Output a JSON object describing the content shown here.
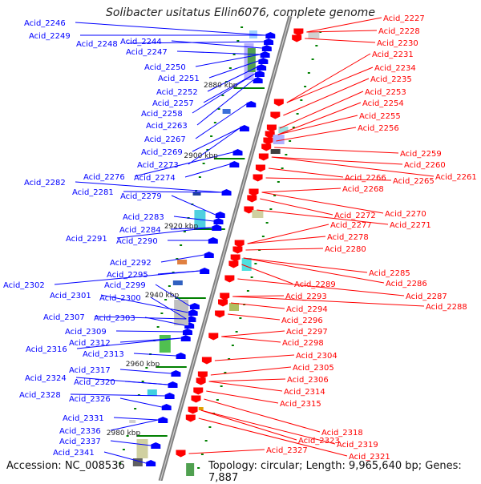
{
  "header": {
    "title": "Solibacter usitatus Ellin6076, complete genome"
  },
  "footer": {
    "accession": "Accession: NC_008536",
    "topology": "Topology: circular; Length: 9,965,640 bp; Genes: 7,887"
  },
  "colors": {
    "left_strand": "#0000ff",
    "right_strand": "#ff0000",
    "backbone": "#808080",
    "tick": "#008000"
  },
  "scale_ticks": [
    "2880 kbp",
    "2900 kbp",
    "2920 kbp",
    "2940 kbp",
    "2960 kbp",
    "2980 kbp"
  ],
  "left_genes": [
    "Acid_2246",
    "Acid_2249",
    "Acid_2248",
    "Acid_2244",
    "Acid_2247",
    "Acid_2250",
    "Acid_2251",
    "Acid_2252",
    "Acid_2257",
    "Acid_2258",
    "Acid_2263",
    "Acid_2267",
    "Acid_2269",
    "Acid_2273",
    "Acid_2276",
    "Acid_2274",
    "Acid_2282",
    "Acid_2281",
    "Acid_2279",
    "Acid_2283",
    "Acid_2284",
    "Acid_2291",
    "Acid_2290",
    "Acid_2292",
    "Acid_2295",
    "Acid_2302",
    "Acid_2299",
    "Acid_2301",
    "Acid_2300",
    "Acid_2307",
    "Acid_2303",
    "Acid_2309",
    "Acid_2312",
    "Acid_2316",
    "Acid_2313",
    "Acid_2317",
    "Acid_2324",
    "Acid_2320",
    "Acid_2328",
    "Acid_2326",
    "Acid_2331",
    "Acid_2336",
    "Acid_2337",
    "Acid_2341"
  ],
  "right_genes": [
    "Acid_2227",
    "Acid_2228",
    "Acid_2230",
    "Acid_2231",
    "Acid_2234",
    "Acid_2235",
    "Acid_2253",
    "Acid_2254",
    "Acid_2255",
    "Acid_2256",
    "Acid_2259",
    "Acid_2260",
    "Acid_2261",
    "Acid_2266",
    "Acid_2265",
    "Acid_2268",
    "Acid_2270",
    "Acid_2272",
    "Acid_2271",
    "Acid_2277",
    "Acid_2278",
    "Acid_2280",
    "Acid_2285",
    "Acid_2286",
    "Acid_2289",
    "Acid_2287",
    "Acid_2293",
    "Acid_2288",
    "Acid_2294",
    "Acid_2296",
    "Acid_2297",
    "Acid_2298",
    "Acid_2304",
    "Acid_2305",
    "Acid_2306",
    "Acid_2314",
    "Acid_2315",
    "Acid_2318",
    "Acid_2319",
    "Acid_2323",
    "Acid_2321",
    "Acid_2327"
  ]
}
